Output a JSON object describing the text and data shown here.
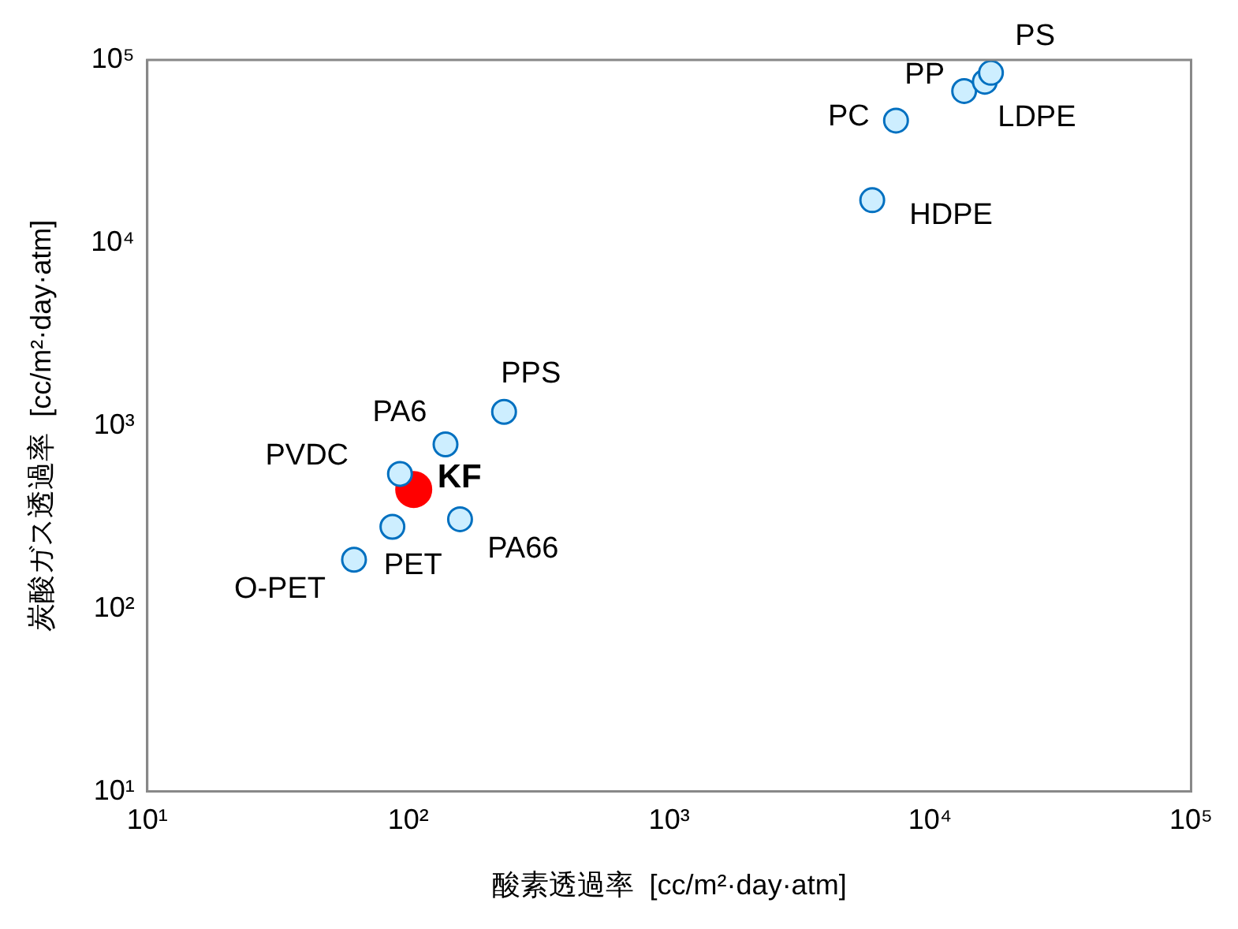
{
  "chart_data": {
    "type": "scatter",
    "xlabel": "酸素透過率  [cc/m²·day·atm]",
    "ylabel": "炭酸ガス透過率  [cc/m²·day·atm]",
    "log": "xy",
    "marker": "circle",
    "grid": false,
    "xlim": [
      10,
      100000
    ],
    "ylim": [
      10,
      100000
    ],
    "xticks": [
      {
        "value": 10,
        "label": "10¹"
      },
      {
        "value": 100,
        "label": "10²"
      },
      {
        "value": 1000,
        "label": "10³"
      },
      {
        "value": 10000,
        "label": "10⁴"
      },
      {
        "value": 100000,
        "label": "10⁵"
      }
    ],
    "yticks": [
      {
        "value": 10,
        "label": "10¹"
      },
      {
        "value": 100,
        "label": "10²"
      },
      {
        "value": 1000,
        "label": "10³"
      },
      {
        "value": 10000,
        "label": "10⁴"
      },
      {
        "value": 100000,
        "label": "10⁵"
      }
    ],
    "series": [
      {
        "color": "#0070c0",
        "x": [
          13500,
          7400,
          16200,
          6000,
          233,
          139,
          93,
          87,
          158,
          62,
          17100
        ],
        "values": [
          67600,
          46600,
          76000,
          17100,
          1190,
          790,
          545,
          280,
          308,
          185,
          85000
        ]
      },
      {
        "name": "KF",
        "color": "#ff0000",
        "x": [
          105
        ],
        "values": [
          448
        ]
      }
    ],
    "annotations": [
      {
        "text": "PS",
        "x": 17100,
        "y": 85000
      },
      {
        "text": "PP",
        "x": 13500,
        "y": 67600
      },
      {
        "text": "PC",
        "x": 7400,
        "y": 46600
      },
      {
        "text": "LDPE",
        "x": 16200,
        "y": 76000
      },
      {
        "text": "HDPE",
        "x": 6000,
        "y": 17100
      },
      {
        "text": "PPS",
        "x": 233,
        "y": 1190
      },
      {
        "text": "PA6",
        "x": 139,
        "y": 790
      },
      {
        "text": "PVDC",
        "x": 93,
        "y": 545
      },
      {
        "text": "PET",
        "x": 87,
        "y": 280
      },
      {
        "text": "PA66",
        "x": 158,
        "y": 308
      },
      {
        "text": "O-PET",
        "x": 62,
        "y": 185
      }
    ]
  }
}
